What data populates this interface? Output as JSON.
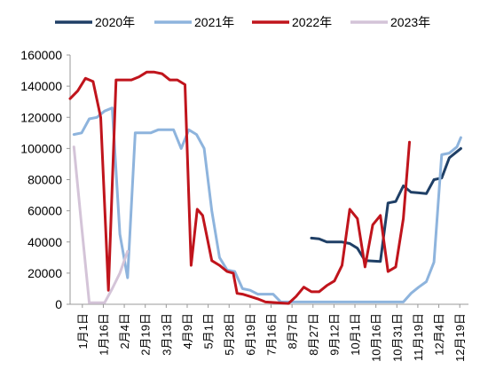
{
  "chart_data": {
    "type": "line",
    "title": "",
    "xlabel": "",
    "ylabel": "",
    "ylim": [
      0,
      160000
    ],
    "yticks": [
      "0",
      "20000",
      "40000",
      "60000",
      "80000",
      "100000",
      "120000",
      "140000",
      "160000"
    ],
    "xticks": [
      "1月1日",
      "1月16日",
      "2月4日",
      "2月19日",
      "3月13日",
      "4月9日",
      "5月1日",
      "5月28日",
      "6月19日",
      "7月16日",
      "8月7日",
      "8月27日",
      "9月12日",
      "10月1日",
      "10月16日",
      "10月31日",
      "11月19日",
      "12月4日",
      "12月19日"
    ],
    "grid": false,
    "legend_position": "top",
    "series": [
      {
        "name": "2020年",
        "color": "#1f3f66",
        "points": [
          [
            31.5,
            42500
          ],
          [
            32.5,
            42000
          ],
          [
            33.5,
            40000
          ],
          [
            35.5,
            40000
          ],
          [
            36.5,
            39000
          ],
          [
            37.5,
            36000
          ],
          [
            38.5,
            28000
          ],
          [
            40.5,
            27500
          ],
          [
            41.5,
            65000
          ],
          [
            42.5,
            66000
          ],
          [
            43.5,
            76000
          ],
          [
            44.5,
            72000
          ],
          [
            45.5,
            71500
          ],
          [
            46.5,
            71000
          ],
          [
            47.5,
            80000
          ],
          [
            48.5,
            81000
          ],
          [
            49.5,
            94000
          ],
          [
            50.5,
            98000
          ],
          [
            51.0,
            100000
          ]
        ]
      },
      {
        "name": "2021年",
        "color": "#8eb4dd",
        "points": [
          [
            0.5,
            109000
          ],
          [
            1.5,
            110000
          ],
          [
            2.5,
            119000
          ],
          [
            3.5,
            120000
          ],
          [
            4.5,
            124000
          ],
          [
            5.5,
            126000
          ],
          [
            6.5,
            45000
          ],
          [
            7.5,
            17000
          ],
          [
            8.5,
            110000
          ],
          [
            10.5,
            110000
          ],
          [
            11.5,
            112000
          ],
          [
            13.5,
            112000
          ],
          [
            14.5,
            100000
          ],
          [
            15.5,
            112000
          ],
          [
            16.5,
            109000
          ],
          [
            17.5,
            100000
          ],
          [
            18.5,
            60000
          ],
          [
            19.5,
            30000
          ],
          [
            20.5,
            22000
          ],
          [
            21.5,
            21000
          ],
          [
            22.5,
            10000
          ],
          [
            23.5,
            9000
          ],
          [
            24.5,
            6500
          ],
          [
            26.5,
            6500
          ],
          [
            27.5,
            1500
          ],
          [
            43.5,
            1500
          ],
          [
            44.5,
            7000
          ],
          [
            45.5,
            11000
          ],
          [
            46.5,
            14500
          ],
          [
            47.5,
            27000
          ],
          [
            48.5,
            96000
          ],
          [
            49.5,
            97000
          ],
          [
            50.5,
            101000
          ],
          [
            51.0,
            107000
          ]
        ]
      },
      {
        "name": "2022年",
        "color": "#c0141c",
        "points": [
          [
            0.0,
            132000
          ],
          [
            1.0,
            137000
          ],
          [
            2.0,
            145000
          ],
          [
            3.0,
            143000
          ],
          [
            4.0,
            120000
          ],
          [
            5.0,
            9000
          ],
          [
            6.0,
            144000
          ],
          [
            8.0,
            144000
          ],
          [
            9.0,
            146000
          ],
          [
            10.0,
            149000
          ],
          [
            11.0,
            149000
          ],
          [
            12.0,
            148000
          ],
          [
            13.0,
            144000
          ],
          [
            14.0,
            144000
          ],
          [
            15.0,
            141000
          ],
          [
            15.8,
            25000
          ],
          [
            16.6,
            61000
          ],
          [
            17.3,
            57000
          ],
          [
            18.5,
            28000
          ],
          [
            19.5,
            25000
          ],
          [
            20.5,
            21000
          ],
          [
            21.3,
            20000
          ],
          [
            21.8,
            7000
          ],
          [
            22.5,
            6500
          ],
          [
            23.5,
            5000
          ],
          [
            24.5,
            3500
          ],
          [
            25.5,
            1500
          ],
          [
            27.0,
            1000
          ],
          [
            28.5,
            500
          ],
          [
            29.5,
            5000
          ],
          [
            30.5,
            11000
          ],
          [
            31.5,
            8000
          ],
          [
            32.5,
            8000
          ],
          [
            33.5,
            12000
          ],
          [
            34.5,
            15000
          ],
          [
            35.5,
            25000
          ],
          [
            36.5,
            61000
          ],
          [
            37.5,
            55000
          ],
          [
            38.5,
            24000
          ],
          [
            39.5,
            51000
          ],
          [
            40.5,
            57000
          ],
          [
            41.5,
            21000
          ],
          [
            42.5,
            24000
          ],
          [
            43.5,
            55000
          ],
          [
            44.3,
            104000
          ]
        ]
      },
      {
        "name": "2023年",
        "color": "#d4c4d8",
        "points": [
          [
            0.5,
            101000
          ],
          [
            1.5,
            50000
          ],
          [
            2.5,
            1000
          ],
          [
            4.5,
            1000
          ],
          [
            5.5,
            10000
          ],
          [
            6.5,
            20000
          ],
          [
            7.5,
            34000
          ]
        ]
      }
    ]
  }
}
